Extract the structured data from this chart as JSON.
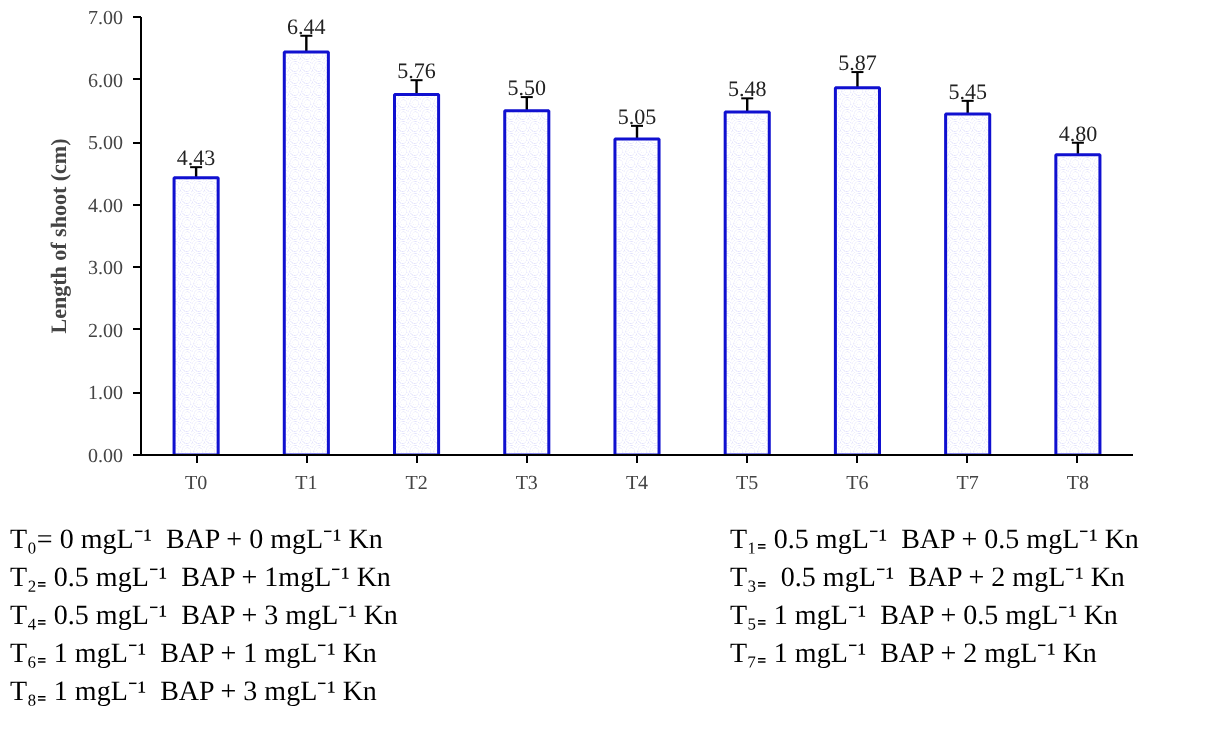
{
  "chart_data": {
    "type": "bar",
    "ylabel": "Length of shoot (cm)",
    "categories": [
      "T0",
      "T1",
      "T2",
      "T3",
      "T4",
      "T5",
      "T6",
      "T7",
      "T8"
    ],
    "values": [
      4.43,
      6.44,
      5.76,
      5.5,
      5.05,
      5.48,
      5.87,
      5.45,
      4.8
    ],
    "errors": [
      0.17,
      0.26,
      0.23,
      0.22,
      0.21,
      0.22,
      0.25,
      0.21,
      0.19
    ],
    "color": "#8c8cf2",
    "grid": false,
    "value_labels": [
      "4.43",
      "6.44",
      "5.76",
      "5.50",
      "5.05",
      "5.48",
      "5.87",
      "5.45",
      "4.80"
    ],
    "ylim": [
      0,
      7
    ],
    "yticks": [
      {
        "value": 0,
        "label": "0.00"
      },
      {
        "value": 1,
        "label": "1.00"
      },
      {
        "value": 2,
        "label": "2.00"
      },
      {
        "value": 3,
        "label": "3.00"
      },
      {
        "value": 4,
        "label": "4.00"
      },
      {
        "value": 5,
        "label": "5.00"
      },
      {
        "value": 6,
        "label": "6.00"
      },
      {
        "value": 7,
        "label": "7.00"
      }
    ],
    "annotations": [
      "T₀= 0 mgL⁻¹  BAP + 0 mgL⁻¹ Kn",
      "T₁₌ 0.5 mgL⁻¹  BAP + 0.5 mgL⁻¹ Kn",
      "T₂₌ 0.5 mgL⁻¹  BAP + 1mgL⁻¹ Kn",
      "T₃₌  0.5 mgL⁻¹  BAP + 2 mgL⁻¹ Kn",
      "T₄₌ 0.5 mgL⁻¹  BAP + 3 mgL⁻¹ Kn",
      "T₅₌ 1 mgL⁻¹  BAP + 0.5 mgL⁻¹ Kn",
      "T₆₌ 1 mgL⁻¹  BAP + 1 mgL⁻¹ Kn",
      "T₇₌ 1 mgL⁻¹  BAP + 2 mgL⁻¹ Kn",
      "T₈₌ 1 mgL⁻¹  BAP + 3 mgL⁻¹ Kn"
    ]
  }
}
